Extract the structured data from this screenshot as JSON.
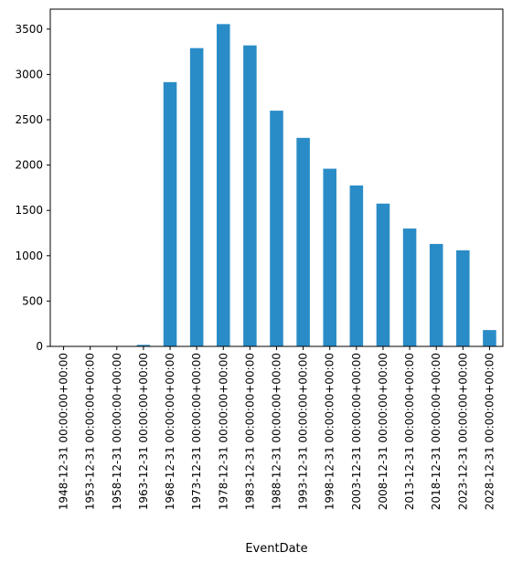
{
  "chart_data": {
    "type": "bar",
    "xlabel": "EventDate",
    "ylabel": "",
    "title": "",
    "categories": [
      "1948-12-31 00:00:00+00:00",
      "1953-12-31 00:00:00+00:00",
      "1958-12-31 00:00:00+00:00",
      "1963-12-31 00:00:00+00:00",
      "1968-12-31 00:00:00+00:00",
      "1973-12-31 00:00:00+00:00",
      "1978-12-31 00:00:00+00:00",
      "1983-12-31 00:00:00+00:00",
      "1988-12-31 00:00:00+00:00",
      "1993-12-31 00:00:00+00:00",
      "1998-12-31 00:00:00+00:00",
      "2003-12-31 00:00:00+00:00",
      "2008-12-31 00:00:00+00:00",
      "2013-12-31 00:00:00+00:00",
      "2018-12-31 00:00:00+00:00",
      "2023-12-31 00:00:00+00:00",
      "2028-12-31 00:00:00+00:00"
    ],
    "values": [
      1,
      2,
      4,
      17,
      2915,
      3290,
      3555,
      3320,
      2600,
      2300,
      1960,
      1775,
      1575,
      1300,
      1130,
      1060,
      180
    ],
    "ylim": [
      0,
      3720
    ],
    "yticks": [
      "0",
      "500",
      "1000",
      "1500",
      "2000",
      "2500",
      "3000",
      "3500"
    ],
    "bar_color": "#2a8cc7",
    "grid": false,
    "legend": "none"
  }
}
